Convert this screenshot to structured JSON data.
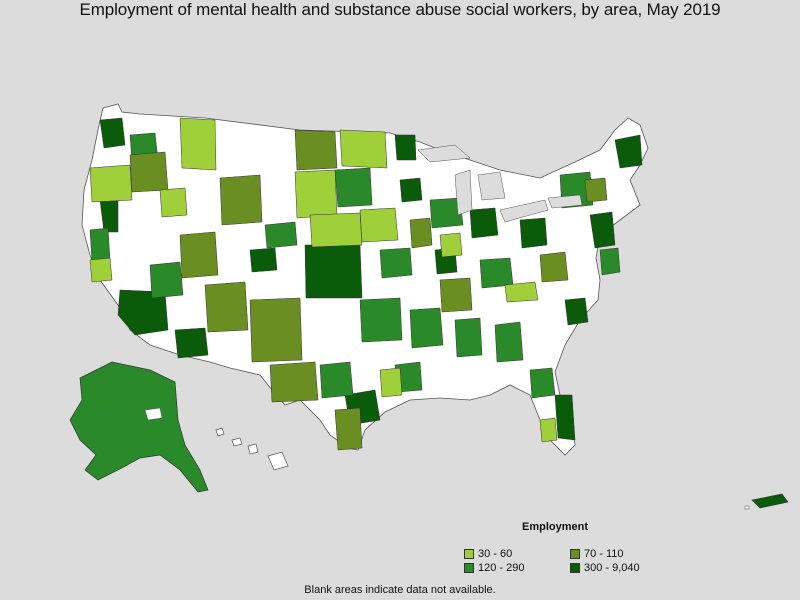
{
  "title": "Employment of mental health and substance abuse social workers, by area, May 2019",
  "legend": {
    "title": "Employment",
    "items": [
      {
        "label": "30 - 60",
        "color": "#9fd03a"
      },
      {
        "label": "70 - 110",
        "color": "#6b8e23"
      },
      {
        "label": "120 - 290",
        "color": "#2a8a2a"
      },
      {
        "label": "300 - 9,040",
        "color": "#0a5c0a"
      }
    ]
  },
  "footnote": "Blank areas indicate data not available."
}
